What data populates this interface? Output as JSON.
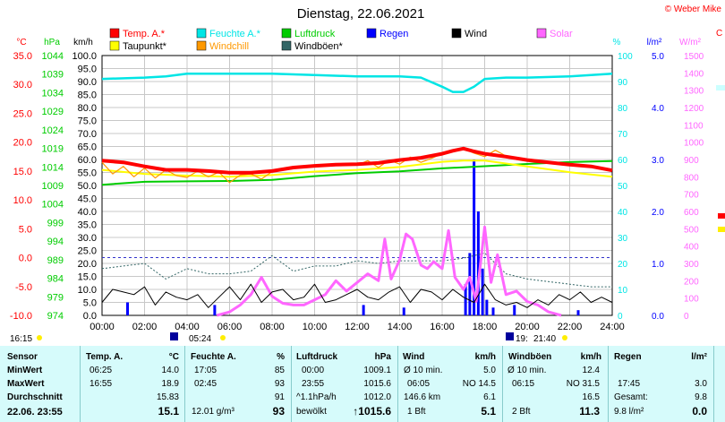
{
  "window": {
    "title": "Dienstag, 22.06.2021",
    "copyright": "© Weber Mike"
  },
  "legend": [
    {
      "label": "Temp. A.*",
      "color": "#ff0000"
    },
    {
      "label": "Feuchte A.*",
      "color": "#00e5e5"
    },
    {
      "label": "Luftdruck",
      "color": "#00cc00"
    },
    {
      "label": "Regen",
      "color": "#0000ff"
    },
    {
      "label": "Wind",
      "color": "#000000"
    },
    {
      "label": "Solar",
      "color": "#ff66ff"
    },
    {
      "label": "Taupunkt*",
      "color": "#ffff00"
    },
    {
      "label": "Windchill",
      "color": "#ff9900"
    },
    {
      "label": "Windböen*",
      "color": "#336666"
    }
  ],
  "time_markers": {
    "start": "16:15",
    "sunrise": "05:24",
    "sunset": "21:40",
    "moon_rise": "19:"
  },
  "table": {
    "headers": [
      "Sensor",
      "Temp. A.",
      "°C",
      "Feuchte A.",
      "%",
      "Luftdruck",
      "hPa",
      "Wind",
      "km/h",
      "Windböen",
      "km/h",
      "Regen",
      "l/m²"
    ],
    "rows": [
      {
        "label": "MinWert",
        "temp_time": "06:25",
        "temp": "14.0",
        "hum_time": "17:05",
        "hum": "85",
        "press_time": "00:00",
        "press": "1009.1",
        "wind_label": "Ø 10 min.",
        "wind": "5.0",
        "gust_label": "Ø 10 min.",
        "gust": "12.4",
        "rain_label": "",
        "rain": ""
      },
      {
        "label": "MaxWert",
        "temp_time": "16:55",
        "temp": "18.9",
        "hum_time": "02:45",
        "hum": "93",
        "press_time": "23:55",
        "press": "1015.6",
        "wind_label": "06:05",
        "wind_dir": "NO 14.5",
        "wind": "",
        "gust_label": "06:15",
        "gust": "NO 31.5",
        "rain_label": "17:45",
        "rain": "3.0"
      },
      {
        "label": "Durchschnitt",
        "temp_time": "",
        "temp": "15.83",
        "hum_time": "",
        "hum": "91",
        "press_time": "^1.1hPa/h",
        "press": "1012.0",
        "wind_label": "146.6 km",
        "wind": "6.1",
        "gust_label": "",
        "gust": "16.5",
        "rain_label": "Gesamt:",
        "rain": "9.8"
      },
      {
        "label": "22.06. 23:55",
        "temp_time": "",
        "temp": "15.1",
        "hum_time": "12.01 g/m³",
        "hum": "93",
        "press_time": "bewölkt",
        "press": "↑1015.6",
        "wind_label": "1 Bft",
        "wind": "5.1",
        "gust_label": "2 Bft",
        "gust": "11.3",
        "rain_label": "9.8 l/m²",
        "rain": "0.0"
      }
    ]
  },
  "chart_data": {
    "type": "line",
    "title": "Dienstag, 22.06.2021",
    "x_ticks": [
      "00:00",
      "02:00",
      "04:00",
      "06:00",
      "08:00",
      "10:00",
      "12:00",
      "14:00",
      "16:00",
      "18:00",
      "20:00",
      "22:00",
      "24:00"
    ],
    "xlim": [
      0,
      24
    ],
    "axes": {
      "temp_c": {
        "label": "°C",
        "color": "#ff0000",
        "ticks": [
          "35.0",
          "30.0",
          "25.0",
          "20.0",
          "15.0",
          "10.0",
          "5.0",
          "0.0",
          "-5.0",
          "-10.0"
        ],
        "lim": [
          -10,
          35
        ]
      },
      "pressure_hpa": {
        "label": "hPa",
        "color": "#00cc00",
        "ticks": [
          "1044",
          "1039",
          "1034",
          "1029",
          "1024",
          "1019",
          "1014",
          "1009",
          "1004",
          "999",
          "994",
          "989",
          "984",
          "979",
          "974"
        ],
        "lim": [
          974,
          1044
        ]
      },
      "wind_kmh": {
        "label": "km/h",
        "color": "#000000",
        "ticks": [
          "100.0",
          "95.0",
          "90.0",
          "85.0",
          "80.0",
          "75.0",
          "70.0",
          "65.0",
          "60.0",
          "55.0",
          "50.0",
          "45.0",
          "40.0",
          "35.0",
          "30.0",
          "25.0",
          "20.0",
          "15.0",
          "10.0",
          "5.0",
          "0.0"
        ],
        "lim": [
          0,
          100
        ]
      },
      "humidity_pct": {
        "label": "%",
        "color": "#00e5e5",
        "ticks": [
          "100",
          "90",
          "80",
          "70",
          "60",
          "50",
          "40",
          "30",
          "20",
          "10",
          "0"
        ],
        "lim": [
          0,
          100
        ]
      },
      "rain_lm2": {
        "label": "l/m²",
        "color": "#0000ff",
        "ticks": [
          "5.0",
          "4.0",
          "3.0",
          "2.0",
          "1.0",
          "0.0"
        ],
        "lim": [
          0,
          5
        ]
      },
      "solar_wm2": {
        "label": "W/m²",
        "color": "#ff66ff",
        "ticks": [
          "1500",
          "1400",
          "1300",
          "1200",
          "1100",
          "1000",
          "900",
          "800",
          "700",
          "600",
          "500",
          "400",
          "300",
          "200",
          "100",
          "0"
        ],
        "lim": [
          0,
          1500
        ]
      }
    },
    "series": [
      {
        "name": "Temp. A.*",
        "axis": "temp_c",
        "color": "#ff0000",
        "x": [
          0,
          1,
          2,
          3,
          4,
          5,
          6,
          7,
          8,
          9,
          10,
          11,
          12,
          13,
          14,
          15,
          16,
          16.5,
          17,
          17.5,
          18,
          19,
          20,
          21,
          22,
          23,
          24
        ],
        "y": [
          16.8,
          16.5,
          15.8,
          15.2,
          15.2,
          15.0,
          14.7,
          14.7,
          15.0,
          15.6,
          15.9,
          16.1,
          16.2,
          16.4,
          16.9,
          17.3,
          18.0,
          18.5,
          18.9,
          18.4,
          18.0,
          17.5,
          16.9,
          16.5,
          16.1,
          15.8,
          15.1
        ]
      },
      {
        "name": "Taupunkt*",
        "axis": "temp_c",
        "color": "#ffff00",
        "x": [
          0,
          2,
          4,
          6,
          8,
          10,
          12,
          14,
          16,
          17,
          18,
          20,
          22,
          24
        ],
        "y": [
          15.2,
          14.5,
          14.2,
          14.0,
          14.3,
          14.9,
          15.2,
          15.7,
          16.6,
          16.8,
          16.8,
          15.8,
          14.8,
          14.0
        ]
      },
      {
        "name": "Windchill",
        "axis": "temp_c",
        "color": "#ff9900",
        "x": [
          0,
          0.5,
          1,
          1.5,
          2,
          2.5,
          3,
          3.5,
          4,
          4.5,
          5,
          5.5,
          6,
          6.5,
          7,
          7.5,
          8,
          9,
          10,
          11,
          12,
          12.5,
          13,
          13.5,
          14,
          14.5,
          15,
          15.5,
          16,
          16.5,
          17,
          17.5,
          18,
          18.5,
          19,
          20,
          21,
          22,
          23,
          24
        ],
        "y": [
          16.5,
          14.5,
          15.8,
          14.0,
          15.5,
          13.8,
          15.2,
          14.2,
          13.9,
          15.0,
          14.0,
          14.8,
          13.0,
          14.3,
          14.5,
          13.6,
          14.9,
          15.4,
          15.9,
          16.1,
          16.0,
          16.8,
          15.6,
          16.9,
          16.2,
          17.4,
          16.5,
          17.2,
          18.0,
          18.5,
          18.9,
          18.1,
          17.5,
          18.6,
          17.6,
          16.9,
          16.5,
          16.1,
          15.8,
          15.1
        ]
      },
      {
        "name": "Feuchte A.*",
        "axis": "humidity_pct",
        "color": "#00e5e5",
        "x": [
          0,
          2,
          3,
          4,
          6,
          8,
          10,
          12,
          14,
          15,
          16,
          16.5,
          17,
          17.5,
          18,
          19,
          20,
          22,
          24
        ],
        "y": [
          91,
          91.5,
          92,
          93,
          93,
          93,
          92.5,
          92,
          92,
          91.5,
          88,
          86,
          86,
          88,
          91,
          91.5,
          91.5,
          92,
          93
        ]
      },
      {
        "name": "Luftdruck",
        "axis": "pressure_hpa",
        "color": "#00cc00",
        "x": [
          0,
          2,
          4,
          6,
          8,
          10,
          12,
          14,
          16,
          18,
          20,
          22,
          24
        ],
        "y": [
          1009.2,
          1010.0,
          1010.1,
          1010.2,
          1010.5,
          1011.5,
          1012.3,
          1012.8,
          1013.6,
          1014.2,
          1014.8,
          1015.3,
          1015.6
        ]
      },
      {
        "name": "Solar",
        "axis": "solar_wm2",
        "color": "#ff66ff",
        "x": [
          5.4,
          6,
          6.5,
          7,
          7.5,
          8,
          8.5,
          9,
          9.5,
          10,
          10.5,
          11,
          11.5,
          12,
          12.5,
          13,
          13.3,
          13.6,
          14,
          14.3,
          14.6,
          15,
          15.3,
          15.6,
          16,
          16.3,
          16.6,
          17,
          17.3,
          17.6,
          18,
          18.3,
          18.6,
          19,
          19.5,
          20,
          20.5,
          21,
          21.6
        ],
        "y": [
          0,
          20,
          60,
          120,
          220,
          110,
          70,
          60,
          60,
          90,
          120,
          200,
          140,
          190,
          240,
          200,
          440,
          210,
          320,
          470,
          440,
          290,
          270,
          310,
          270,
          490,
          220,
          150,
          220,
          80,
          510,
          190,
          350,
          120,
          140,
          80,
          60,
          20,
          0
        ]
      },
      {
        "name": "Wind",
        "axis": "wind_kmh",
        "color": "#000000",
        "x": [
          0,
          0.5,
          1,
          1.5,
          2,
          2.5,
          3,
          3.5,
          4,
          4.5,
          5,
          5.5,
          6,
          6.5,
          7,
          7.5,
          8,
          8.5,
          9,
          9.5,
          10,
          10.5,
          11,
          11.5,
          12,
          12.5,
          13,
          13.5,
          14,
          14.5,
          15,
          15.5,
          16,
          16.5,
          17,
          17.5,
          18,
          18.5,
          19,
          19.5,
          20,
          20.5,
          21,
          21.5,
          22,
          22.5,
          23,
          23.5,
          24
        ],
        "y": [
          5,
          10,
          9,
          8,
          11,
          4,
          9,
          7,
          6,
          8,
          3,
          7,
          11,
          6,
          12,
          5,
          9,
          10,
          6,
          7,
          12,
          5,
          6,
          8,
          10,
          7,
          6,
          9,
          11,
          5,
          10,
          9,
          6,
          10,
          7,
          5,
          12,
          6,
          4,
          5,
          3,
          6,
          4,
          8,
          6,
          9,
          5,
          7,
          5
        ]
      },
      {
        "name": "Windböen*",
        "axis": "wind_kmh",
        "color": "#336666",
        "x": [
          0,
          1,
          2,
          3,
          4,
          5,
          6,
          7,
          8,
          9,
          10,
          11,
          12,
          13,
          14,
          15,
          16,
          17,
          18,
          19,
          20,
          21,
          22,
          23,
          24
        ],
        "y": [
          18,
          19,
          20,
          14,
          18,
          16,
          16,
          17,
          23,
          17,
          19,
          19,
          21,
          20,
          21,
          21,
          21,
          22,
          24,
          16,
          14,
          13,
          12,
          11,
          11
        ]
      },
      {
        "name": "Regen",
        "axis": "rain_lm2",
        "color": "#0000ff",
        "type": "bar",
        "x": [
          1.2,
          5.3,
          12.3,
          14.2,
          17.1,
          17.3,
          17.5,
          17.7,
          17.9,
          18.1,
          18.4,
          19.4,
          22.4
        ],
        "y": [
          0.25,
          0.2,
          0.2,
          0.15,
          0.6,
          1.2,
          3.0,
          2.0,
          0.9,
          0.3,
          0.15,
          0.2,
          0.1
        ]
      }
    ]
  }
}
